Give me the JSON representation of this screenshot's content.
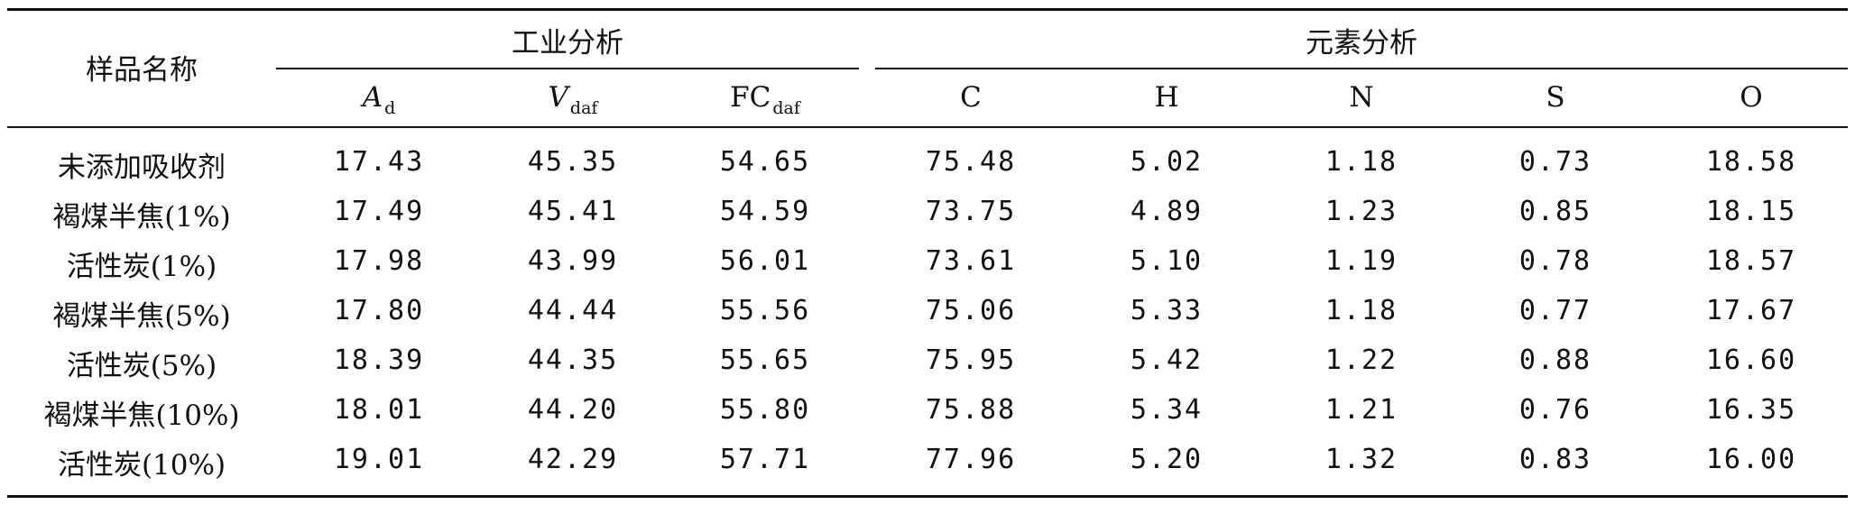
{
  "header": {
    "sample_name": "样品名称",
    "group_proximate": "工业分析",
    "group_ultimate": "元素分析",
    "columns": [
      {
        "main": "A",
        "sub": "d",
        "italic": true
      },
      {
        "main": "V",
        "sub": "daf",
        "italic": true
      },
      {
        "main": "FC",
        "sub": "daf",
        "italic": false
      },
      {
        "main": "C",
        "sub": "",
        "italic": false
      },
      {
        "main": "H",
        "sub": "",
        "italic": false
      },
      {
        "main": "N",
        "sub": "",
        "italic": false
      },
      {
        "main": "S",
        "sub": "",
        "italic": false
      },
      {
        "main": "O",
        "sub": "",
        "italic": false
      }
    ]
  },
  "rows": [
    {
      "name": "未添加吸收剂",
      "values": [
        "17.43",
        "45.35",
        "54.65",
        "75.48",
        "5.02",
        "1.18",
        "0.73",
        "18.58"
      ]
    },
    {
      "name": "褐煤半焦(1%)",
      "values": [
        "17.49",
        "45.41",
        "54.59",
        "73.75",
        "4.89",
        "1.23",
        "0.85",
        "18.15"
      ]
    },
    {
      "name": "活性炭(1%)",
      "values": [
        "17.98",
        "43.99",
        "56.01",
        "73.61",
        "5.10",
        "1.19",
        "0.78",
        "18.57"
      ]
    },
    {
      "name": "褐煤半焦(5%)",
      "values": [
        "17.80",
        "44.44",
        "55.56",
        "75.06",
        "5.33",
        "1.18",
        "0.77",
        "17.67"
      ]
    },
    {
      "name": "活性炭(5%)",
      "values": [
        "18.39",
        "44.35",
        "55.65",
        "75.95",
        "5.42",
        "1.22",
        "0.88",
        "16.60"
      ]
    },
    {
      "name": "褐煤半焦(10%)",
      "values": [
        "18.01",
        "44.20",
        "55.80",
        "75.88",
        "5.34",
        "1.21",
        "0.76",
        "16.35"
      ]
    },
    {
      "name": "活性炭(10%)",
      "values": [
        "19.01",
        "42.29",
        "57.71",
        "77.96",
        "5.20",
        "1.32",
        "0.83",
        "16.00"
      ]
    }
  ]
}
